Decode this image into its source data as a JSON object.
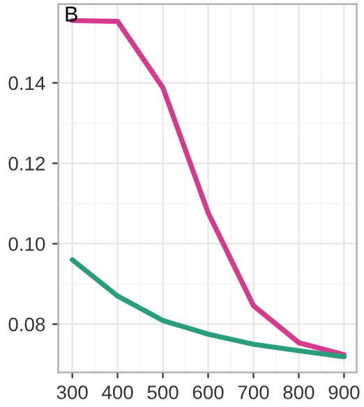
{
  "chart_data": {
    "type": "line",
    "annotations": [
      "B"
    ],
    "x": [
      300,
      400,
      500,
      600,
      700,
      800,
      900
    ],
    "series": [
      {
        "color": "#d63a8c",
        "values": [
          0.1555,
          0.1553,
          0.1388,
          0.1077,
          0.0846,
          0.0754,
          0.0724
        ]
      },
      {
        "color": "#2a9d7c",
        "values": [
          0.096,
          0.087,
          0.0809,
          0.0775,
          0.075,
          0.0734,
          0.0719
        ]
      }
    ],
    "xlim": [
      269,
      928
    ],
    "xticks": [
      300,
      400,
      500,
      600,
      700,
      800,
      900
    ],
    "ylim": [
      0.068,
      0.1596
    ],
    "yticks": [
      {
        "value": 0.08,
        "label": "0.08"
      },
      {
        "value": 0.1,
        "label": "0.10"
      },
      {
        "value": 0.12,
        "label": "0.12"
      },
      {
        "value": 0.14,
        "label": "0.14"
      }
    ],
    "grid": true,
    "line_style": "solid"
  }
}
